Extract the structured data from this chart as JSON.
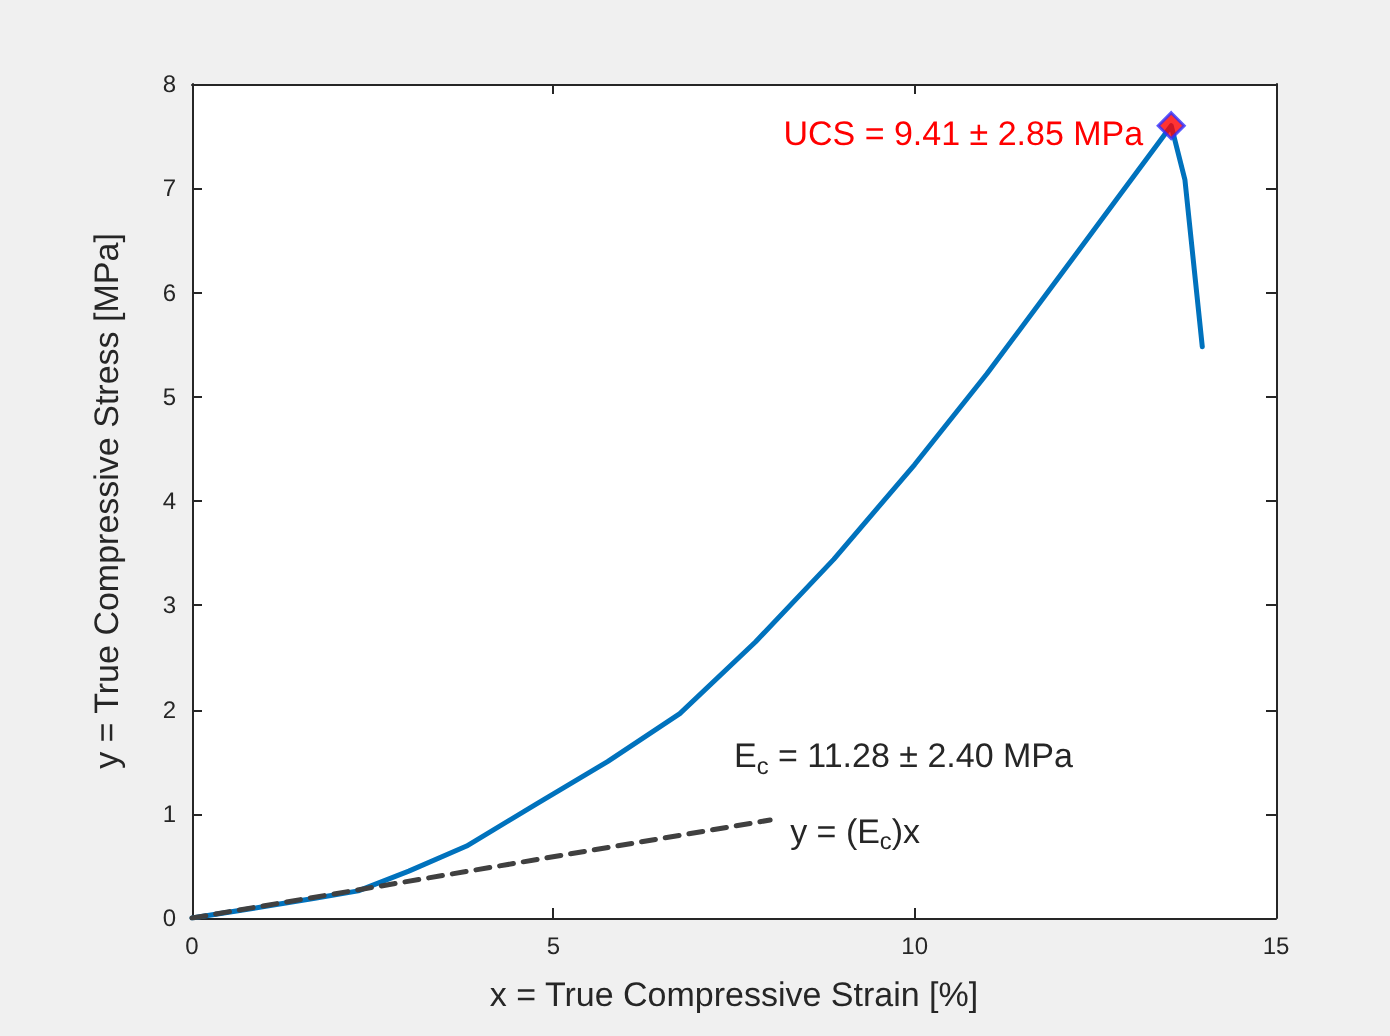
{
  "chart_data": {
    "type": "line",
    "xlabel": "x = True Compressive Strain [%]",
    "ylabel": "y = True Compressive Stress [MPa]",
    "xlim": [
      0,
      15
    ],
    "xticks": [
      0,
      5,
      10,
      15
    ],
    "ylim": [
      0,
      8
    ],
    "yticks": [
      0,
      1,
      2,
      3,
      4,
      5,
      6,
      7,
      8
    ],
    "grid": false,
    "series": [
      {
        "color": "#0072bd",
        "x": [
          0,
          1,
          1.7,
          2.3,
          3,
          3.8,
          4.78,
          5.75,
          6.75,
          7.8,
          8.88,
          10,
          11,
          12,
          12.8,
          13.55,
          13.74,
          13.98
        ],
        "values": [
          0,
          0.11,
          0.19,
          0.26,
          0.45,
          0.69,
          1.1,
          1.5,
          1.96,
          2.65,
          3.44,
          4.35,
          5.22,
          6.15,
          6.9,
          7.6,
          7.08,
          5.48
        ],
        "marker": "none",
        "line_style": "solid"
      },
      {
        "type": "line",
        "color": "#404040",
        "x": [
          0,
          8
        ],
        "values": [
          0,
          0.94
        ],
        "marker": "none",
        "line_style": "dashed"
      },
      {
        "type": "scatter",
        "color": "#ff0000",
        "x": [
          13.55
        ],
        "values": [
          7.6
        ],
        "marker": "diamond"
      }
    ],
    "annotations": [
      {
        "text": "UCS = 9.41 ± 2.85 MPa",
        "x": 13.55,
        "y": 7.6
      },
      "E$_{c}$ = 11.28 ± 2.40 MPa",
      {
        "text": "y = (E$_{c}$)x",
        "x": 8,
        "y": 0.94
      }
    ]
  }
}
